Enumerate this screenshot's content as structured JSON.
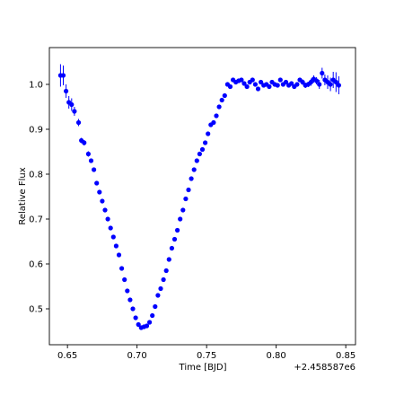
{
  "chart_data": {
    "type": "scatter",
    "xlabel": "Time [BJD]",
    "ylabel": "Relative Flux",
    "x_offset_label": "+2.458587e6",
    "xlim": [
      0.637,
      0.857
    ],
    "ylim": [
      0.42,
      1.082
    ],
    "x_ticks": [
      0.65,
      0.7,
      0.75,
      0.8,
      0.85
    ],
    "x_tick_labels": [
      "0.65",
      "0.70",
      "0.75",
      "0.80",
      "0.85"
    ],
    "y_ticks": [
      0.5,
      0.6,
      0.7,
      0.8,
      0.9,
      1.0
    ],
    "y_tick_labels": [
      "0.5",
      "0.6",
      "0.7",
      "0.8",
      "0.9",
      "1.0"
    ],
    "grid": false,
    "marker_color": "#0000ff",
    "series": [
      {
        "x": [
          0.645,
          0.647,
          0.649,
          0.651,
          0.653,
          0.655,
          0.658,
          0.66,
          0.662,
          0.665,
          0.667,
          0.669,
          0.671,
          0.673,
          0.675,
          0.677,
          0.679,
          0.681,
          0.683,
          0.685,
          0.687,
          0.689,
          0.691,
          0.693,
          0.695,
          0.697,
          0.699,
          0.701,
          0.703,
          0.705,
          0.707,
          0.709,
          0.711,
          0.713,
          0.715,
          0.717,
          0.719,
          0.721,
          0.723,
          0.725,
          0.727,
          0.729,
          0.731,
          0.733,
          0.735,
          0.737,
          0.739,
          0.741,
          0.743,
          0.745,
          0.747,
          0.749,
          0.751,
          0.753,
          0.755,
          0.757,
          0.759,
          0.761,
          0.763,
          0.765,
          0.767,
          0.769,
          0.771,
          0.773,
          0.775,
          0.777,
          0.779,
          0.781,
          0.783,
          0.785,
          0.787,
          0.789,
          0.791,
          0.793,
          0.795,
          0.797,
          0.799,
          0.801,
          0.803,
          0.805,
          0.807,
          0.809,
          0.811,
          0.813,
          0.815,
          0.817,
          0.819,
          0.821,
          0.823,
          0.825,
          0.827,
          0.829,
          0.831,
          0.833,
          0.835,
          0.837,
          0.839,
          0.841,
          0.843,
          0.845
        ],
        "y": [
          1.02,
          1.02,
          0.985,
          0.96,
          0.955,
          0.94,
          0.915,
          0.875,
          0.87,
          0.845,
          0.83,
          0.81,
          0.78,
          0.76,
          0.74,
          0.72,
          0.7,
          0.68,
          0.66,
          0.64,
          0.62,
          0.59,
          0.565,
          0.54,
          0.52,
          0.5,
          0.48,
          0.465,
          0.458,
          0.46,
          0.462,
          0.47,
          0.485,
          0.505,
          0.53,
          0.545,
          0.565,
          0.585,
          0.61,
          0.635,
          0.655,
          0.675,
          0.7,
          0.72,
          0.745,
          0.765,
          0.79,
          0.81,
          0.83,
          0.845,
          0.855,
          0.87,
          0.89,
          0.91,
          0.915,
          0.93,
          0.95,
          0.965,
          0.975,
          1.0,
          0.995,
          1.01,
          1.005,
          1.008,
          1.01,
          1.002,
          0.995,
          1.005,
          1.01,
          1.0,
          0.99,
          1.005,
          0.998,
          1.0,
          0.995,
          1.005,
          1.0,
          0.998,
          1.01,
          1.0,
          1.005,
          0.998,
          1.002,
          0.995,
          1.0,
          1.01,
          1.005,
          0.998,
          1.0,
          1.005,
          1.012,
          1.008,
          1.0,
          1.025,
          1.01,
          1.005,
          1.0,
          1.01,
          1.005,
          0.998
        ],
        "err": [
          0.025,
          0.022,
          0.015,
          0.014,
          0.014,
          0.01,
          0.008,
          0.006,
          0.006,
          0.006,
          0.005,
          0.005,
          0.005,
          0.005,
          0.005,
          0.005,
          0.005,
          0.005,
          0.005,
          0.005,
          0.005,
          0.005,
          0.005,
          0.005,
          0.005,
          0.005,
          0.005,
          0.005,
          0.005,
          0.005,
          0.005,
          0.005,
          0.005,
          0.005,
          0.005,
          0.005,
          0.005,
          0.005,
          0.005,
          0.005,
          0.005,
          0.005,
          0.005,
          0.005,
          0.005,
          0.005,
          0.005,
          0.005,
          0.005,
          0.005,
          0.005,
          0.005,
          0.005,
          0.005,
          0.005,
          0.005,
          0.005,
          0.005,
          0.005,
          0.005,
          0.005,
          0.005,
          0.005,
          0.005,
          0.005,
          0.005,
          0.005,
          0.005,
          0.005,
          0.005,
          0.005,
          0.005,
          0.005,
          0.005,
          0.005,
          0.005,
          0.005,
          0.005,
          0.005,
          0.005,
          0.005,
          0.005,
          0.005,
          0.005,
          0.005,
          0.005,
          0.006,
          0.006,
          0.006,
          0.008,
          0.008,
          0.008,
          0.01,
          0.012,
          0.012,
          0.015,
          0.015,
          0.018,
          0.022,
          0.02
        ]
      }
    ]
  }
}
